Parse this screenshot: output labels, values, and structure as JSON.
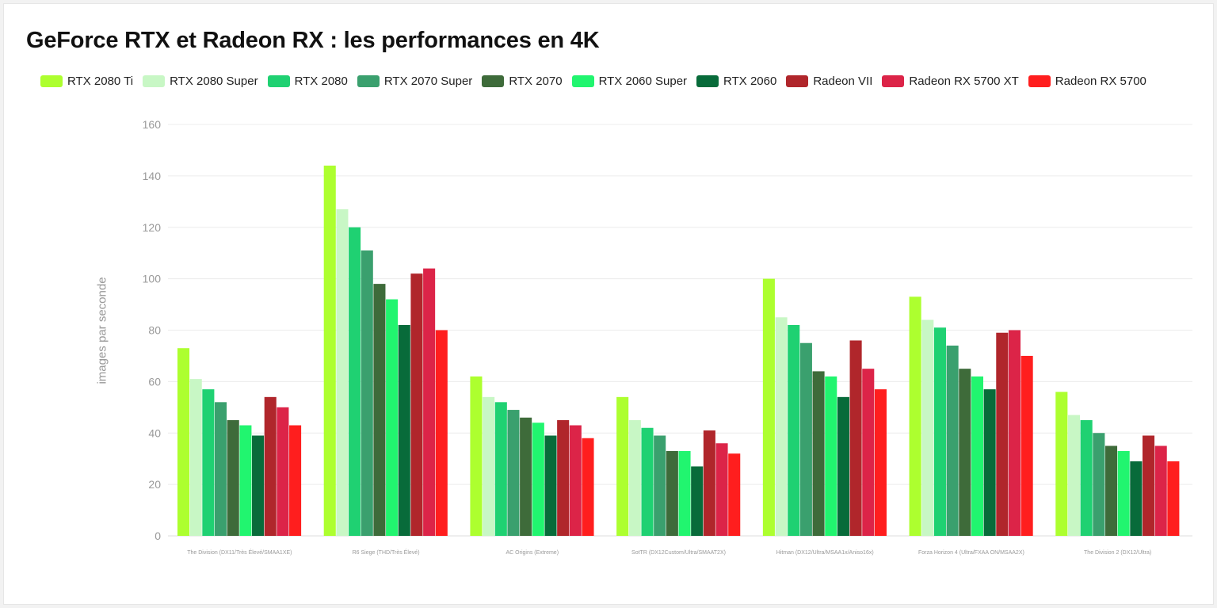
{
  "chart_data": {
    "type": "bar",
    "title": "GeForce RTX et Radeon RX : les performances en 4K",
    "xlabel": "",
    "ylabel": "images par seconde",
    "ylim": [
      0,
      160
    ],
    "yticks": [
      0,
      20,
      40,
      60,
      80,
      100,
      120,
      140,
      160
    ],
    "grid": true,
    "legend_position": "top-left",
    "categories": [
      "The Division (DX11/Très Élevé/SMAA1XE)",
      "R6 Siege (THD/Très Élevé)",
      "AC Origins (Extreme)",
      "SotTR (DX12Custom/Ultra/SMAAT2X)",
      "Hitman (DX12/Ultra/MSAA1x/Aniso16x)",
      "Forza Horizon 4 (Ultra/FXAA ON/MSAA2X)",
      "The Division 2 (DX12/Ultra)"
    ],
    "series": [
      {
        "name": "RTX 2080 Ti",
        "color": "#adff2f",
        "values": [
          73,
          144,
          62,
          54,
          100,
          93,
          56
        ]
      },
      {
        "name": "RTX 2080 Super",
        "color": "#c8f7c5",
        "values": [
          61,
          127,
          54,
          45,
          85,
          84,
          47
        ]
      },
      {
        "name": "RTX 2080",
        "color": "#1fd172",
        "values": [
          57,
          120,
          52,
          42,
          82,
          81,
          45
        ]
      },
      {
        "name": "RTX 2070 Super",
        "color": "#3aa06e",
        "values": [
          52,
          111,
          49,
          39,
          75,
          74,
          40
        ]
      },
      {
        "name": "RTX 2070",
        "color": "#3e6b3a",
        "values": [
          45,
          98,
          46,
          33,
          64,
          65,
          35
        ]
      },
      {
        "name": "RTX 2060 Super",
        "color": "#21f56f",
        "values": [
          43,
          92,
          44,
          33,
          62,
          62,
          33
        ]
      },
      {
        "name": "RTX 2060",
        "color": "#086b3a",
        "values": [
          39,
          82,
          39,
          27,
          54,
          57,
          29
        ]
      },
      {
        "name": "Radeon VII",
        "color": "#b0262b",
        "values": [
          54,
          102,
          45,
          41,
          76,
          79,
          39
        ]
      },
      {
        "name": "Radeon RX 5700 XT",
        "color": "#dc2448",
        "values": [
          50,
          104,
          43,
          36,
          65,
          80,
          35
        ]
      },
      {
        "name": "Radeon RX 5700",
        "color": "#ff1e1e",
        "values": [
          43,
          80,
          38,
          32,
          57,
          70,
          29
        ]
      }
    ]
  }
}
